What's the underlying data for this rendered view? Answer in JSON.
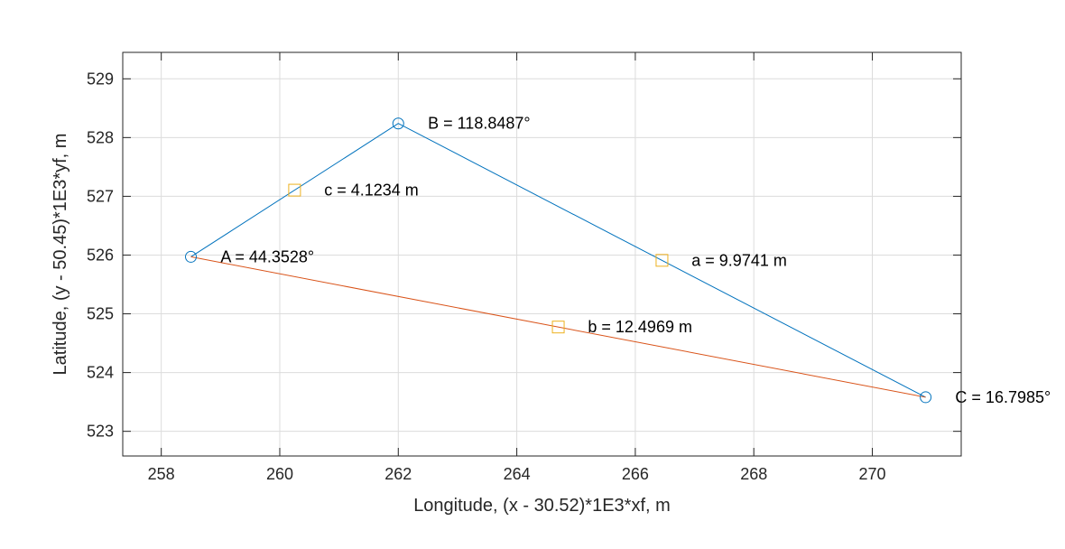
{
  "chart_data": {
    "type": "line",
    "title": "",
    "xlabel": "Longitude, (x - 30.52)*1E3*xf, m",
    "ylabel": "Latitude, (y - 50.45)*1E3*yf, m",
    "xlim": [
      257.35,
      271.5
    ],
    "ylim": [
      522.58,
      529.45
    ],
    "xticks": [
      258,
      260,
      262,
      264,
      266,
      268,
      270
    ],
    "yticks": [
      523,
      524,
      525,
      526,
      527,
      528,
      529
    ],
    "grid": true,
    "series": [
      {
        "color": "#0072BD",
        "marker": "circle",
        "x": [
          258.5,
          262.0,
          270.9
        ],
        "y": [
          525.97,
          528.24,
          523.58
        ]
      },
      {
        "color": "#D95319",
        "marker": "none",
        "x": [
          258.5,
          270.9
        ],
        "y": [
          525.97,
          523.58
        ]
      }
    ],
    "midpoints": {
      "color": "#EDB120",
      "marker": "square",
      "x": [
        260.25,
        266.45,
        264.7
      ],
      "y": [
        527.105,
        525.91,
        524.775
      ]
    },
    "annotations": [
      {
        "text": "A = 44.3528°",
        "x": 259.0,
        "y": 525.97
      },
      {
        "text": "B = 118.8487°",
        "x": 262.5,
        "y": 528.24
      },
      {
        "text": "C = 16.7985°",
        "x": 271.4,
        "y": 523.58
      },
      {
        "text": "c = 4.1234 m",
        "x": 260.75,
        "y": 527.105
      },
      {
        "text": "a = 9.9741 m",
        "x": 266.95,
        "y": 525.91
      },
      {
        "text": "b = 12.4969 m",
        "x": 265.2,
        "y": 524.775
      }
    ]
  }
}
